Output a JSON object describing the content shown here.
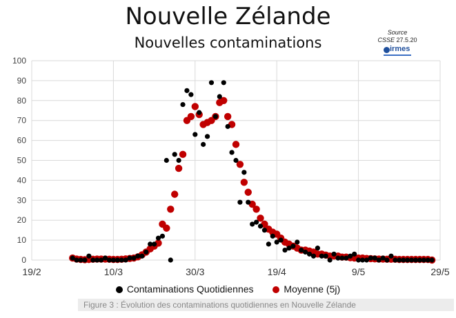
{
  "title": "Nouvelle Zélande",
  "subtitle": "Nouvelles contaminations",
  "source": {
    "label": "Source",
    "csse": "CSSE",
    "date": "27.5.20",
    "logo_text": "irmes"
  },
  "caption": "Figure 3 : Évolution des contaminations quotidiennes en Nouvelle Zélande",
  "colors": {
    "daily": "#000000",
    "average": "#c00000",
    "grid": "#d9d9d9"
  },
  "chart_data": {
    "type": "scatter",
    "x_axis": {
      "labels": [
        "19/2",
        "10/3",
        "30/3",
        "19/4",
        "9/5",
        "29/5"
      ],
      "range": [
        0,
        100
      ]
    },
    "y_axis": {
      "ticks": [
        0,
        10,
        20,
        30,
        40,
        50,
        60,
        70,
        80,
        90,
        100
      ],
      "range": [
        0,
        100
      ]
    },
    "grid": true,
    "legend": {
      "position": "bottom"
    },
    "series": [
      {
        "name": "Contaminations Quotidiennes",
        "color": "#000000",
        "x": [
          10,
          11,
          12,
          13,
          14,
          15,
          16,
          17,
          18,
          19,
          20,
          21,
          22,
          23,
          24,
          25,
          26,
          27,
          28,
          29,
          30,
          31,
          32,
          33,
          34,
          35,
          36,
          37,
          38,
          39,
          40,
          41,
          42,
          43,
          44,
          45,
          46,
          47,
          48,
          49,
          50,
          51,
          52,
          53,
          54,
          55,
          56,
          57,
          58,
          59,
          60,
          61,
          62,
          63,
          64,
          65,
          66,
          67,
          68,
          69,
          70,
          71,
          72,
          73,
          74,
          75,
          76,
          77,
          78,
          79,
          80,
          81,
          82,
          83,
          84,
          85,
          86,
          87,
          88,
          89,
          90,
          91,
          92,
          93,
          94,
          95,
          96,
          97,
          98
        ],
        "y": [
          1,
          0,
          0,
          0,
          2,
          0,
          0,
          0,
          1,
          0,
          0,
          0,
          0,
          0,
          1,
          1,
          2,
          2,
          4,
          8,
          8,
          11,
          12,
          50,
          0,
          53,
          50,
          78,
          85,
          83,
          63,
          74,
          58,
          62,
          89,
          72,
          82,
          89,
          67,
          54,
          50,
          29,
          44,
          29,
          18,
          19,
          17,
          15,
          8,
          12,
          9,
          10,
          5,
          6,
          7,
          9,
          5,
          4,
          3,
          2,
          6,
          2,
          2,
          0,
          3,
          1,
          1,
          1,
          2,
          3,
          0,
          0,
          0,
          1,
          1,
          0,
          1,
          0,
          2,
          0,
          0,
          0,
          0,
          0,
          0,
          0,
          0,
          0,
          0
        ]
      },
      {
        "name": "Moyenne (5j)",
        "color": "#c00000",
        "x": [
          10,
          11,
          12,
          13,
          14,
          15,
          16,
          17,
          18,
          19,
          20,
          21,
          22,
          23,
          24,
          25,
          26,
          27,
          28,
          29,
          30,
          31,
          32,
          33,
          34,
          35,
          36,
          37,
          38,
          39,
          40,
          41,
          42,
          43,
          44,
          45,
          46,
          47,
          48,
          49,
          50,
          51,
          52,
          53,
          54,
          55,
          56,
          57,
          58,
          59,
          60,
          61,
          62,
          63,
          64,
          65,
          66,
          67,
          68,
          69,
          70,
          71,
          72,
          73,
          74,
          75,
          76,
          77,
          78,
          79,
          80,
          81,
          82,
          83,
          84,
          85,
          86,
          87,
          88,
          89,
          90,
          91,
          92,
          93,
          94,
          95,
          96,
          97,
          98
        ],
        "y": [
          1,
          0.5,
          0.3,
          0.2,
          0.3,
          0.4,
          0.5,
          0.5,
          0.5,
          0.4,
          0.3,
          0.3,
          0.4,
          0.6,
          0.8,
          1,
          1.6,
          2.6,
          4,
          5.6,
          7,
          8.5,
          18,
          16,
          25.5,
          33,
          46,
          53,
          70,
          72,
          77,
          73,
          68,
          69,
          70,
          72,
          79,
          80,
          72,
          68,
          58,
          48,
          39,
          34,
          28,
          25.5,
          21,
          18,
          15.5,
          14,
          13,
          11,
          9,
          8,
          7,
          6,
          5,
          5,
          4.5,
          4,
          3,
          3,
          2.5,
          2,
          2,
          2,
          1.5,
          1.5,
          1.2,
          1,
          1,
          1,
          0.8,
          0.7,
          0.6,
          0.5,
          0.5,
          0.4,
          0.4,
          0.4,
          0.3,
          0.3,
          0.3,
          0.3,
          0.3,
          0.3,
          0.3,
          0.3,
          0
        ]
      }
    ]
  }
}
